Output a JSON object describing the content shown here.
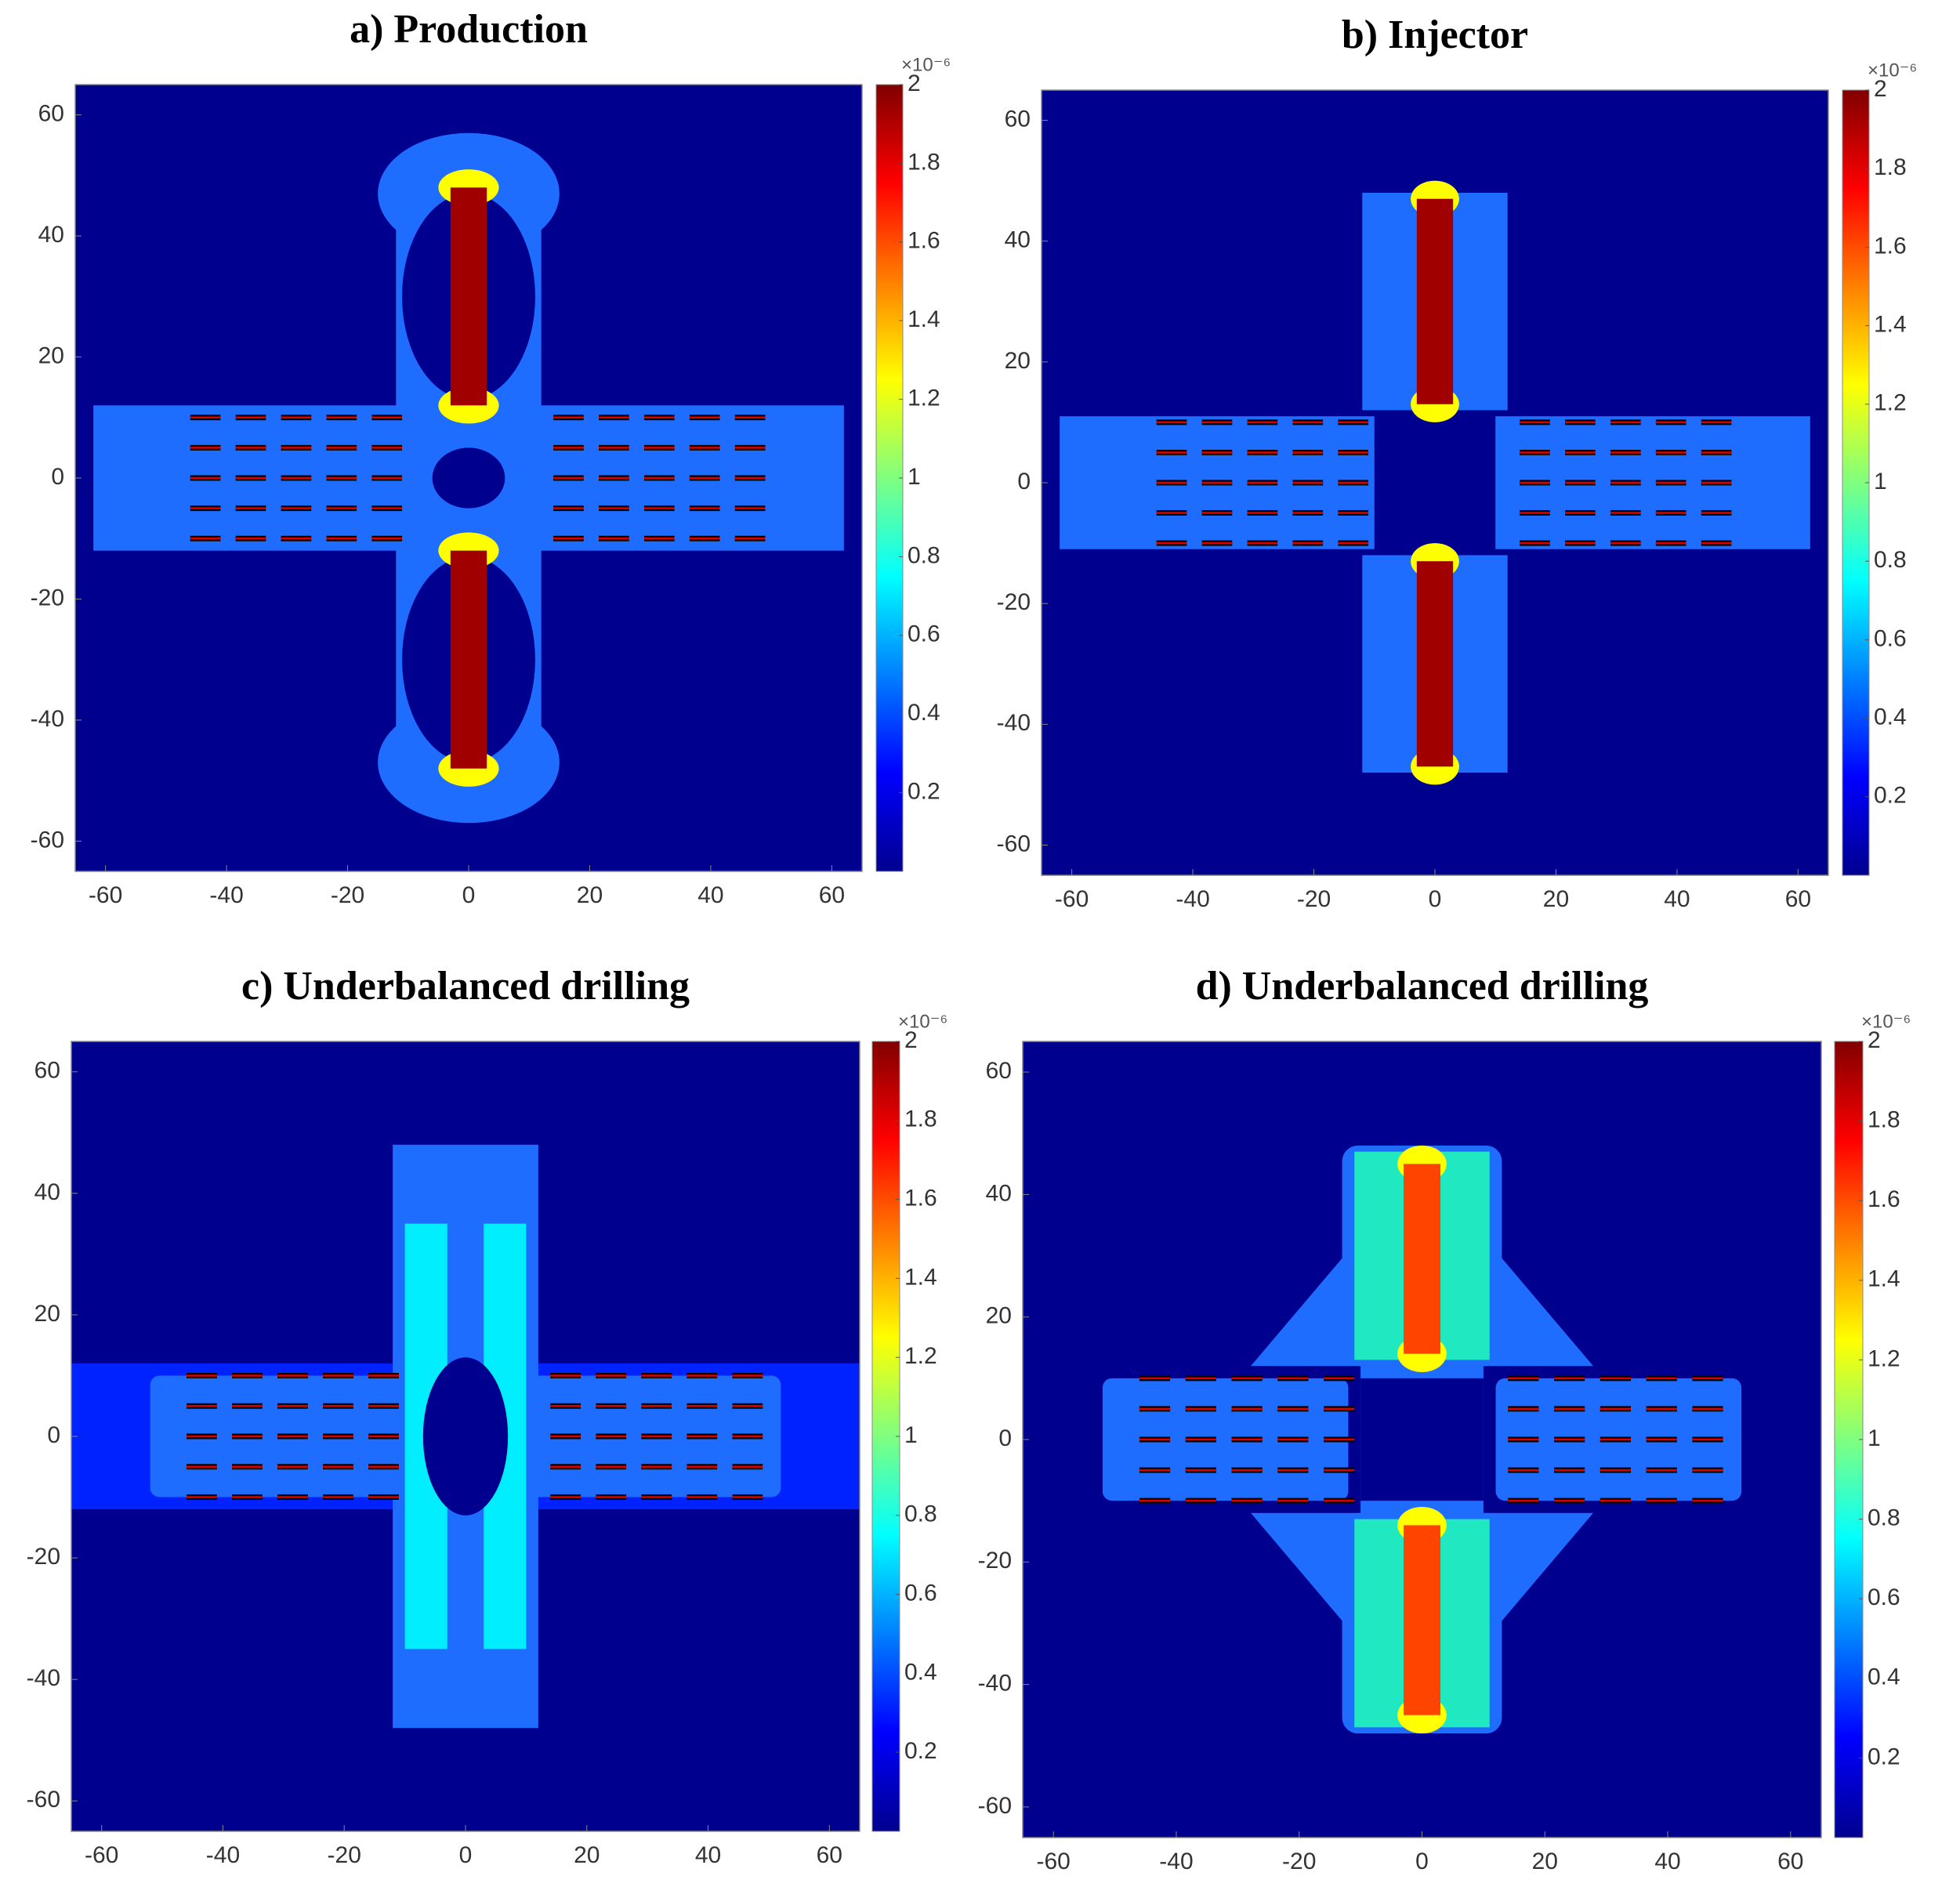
{
  "chart_data": [
    {
      "type": "contour",
      "title": "a) Production",
      "xlim": [
        -65,
        65
      ],
      "ylim": [
        -65,
        65
      ],
      "xticks": [
        -60,
        -40,
        -20,
        0,
        20,
        40,
        60
      ],
      "yticks": [
        -60,
        -40,
        -20,
        0,
        20,
        40,
        60
      ],
      "clim": [
        0,
        2
      ],
      "cticks": [
        0.2,
        0.4,
        0.6,
        0.8,
        1,
        1.2,
        1.4,
        1.6,
        1.8,
        2
      ],
      "colorbar_label": "×10⁻⁶",
      "colormap": "jet"
    },
    {
      "type": "contour",
      "title": "b) Injector",
      "xlim": [
        -65,
        65
      ],
      "ylim": [
        -65,
        65
      ],
      "xticks": [
        -60,
        -40,
        -20,
        0,
        20,
        40,
        60
      ],
      "yticks": [
        -60,
        -40,
        -20,
        0,
        20,
        40,
        60
      ],
      "clim": [
        0,
        2
      ],
      "cticks": [
        0.2,
        0.4,
        0.6,
        0.8,
        1,
        1.2,
        1.4,
        1.6,
        1.8,
        2
      ],
      "colorbar_label": "×10⁻⁶",
      "colormap": "jet"
    },
    {
      "type": "contour",
      "title": "c) Underbalanced drilling",
      "xlim": [
        -65,
        65
      ],
      "ylim": [
        -65,
        65
      ],
      "xticks": [
        -60,
        -40,
        -20,
        0,
        20,
        40,
        60
      ],
      "yticks": [
        -60,
        -40,
        -20,
        0,
        20,
        40,
        60
      ],
      "clim": [
        0,
        2
      ],
      "cticks": [
        0.2,
        0.4,
        0.6,
        0.8,
        1,
        1.2,
        1.4,
        1.6,
        1.8,
        2
      ],
      "colorbar_label": "×10⁻⁶",
      "colormap": "jet"
    },
    {
      "type": "contour",
      "title": "d) Underbalanced drilling",
      "xlim": [
        -65,
        65
      ],
      "ylim": [
        -65,
        65
      ],
      "xticks": [
        -60,
        -40,
        -20,
        0,
        20,
        40,
        60
      ],
      "yticks": [
        -60,
        -40,
        -20,
        0,
        20,
        40,
        60
      ],
      "clim": [
        0,
        2
      ],
      "cticks": [
        0.2,
        0.4,
        0.6,
        0.8,
        1,
        1.2,
        1.4,
        1.6,
        1.8,
        2
      ],
      "colorbar_label": "×10⁻⁶",
      "colormap": "jet"
    }
  ]
}
